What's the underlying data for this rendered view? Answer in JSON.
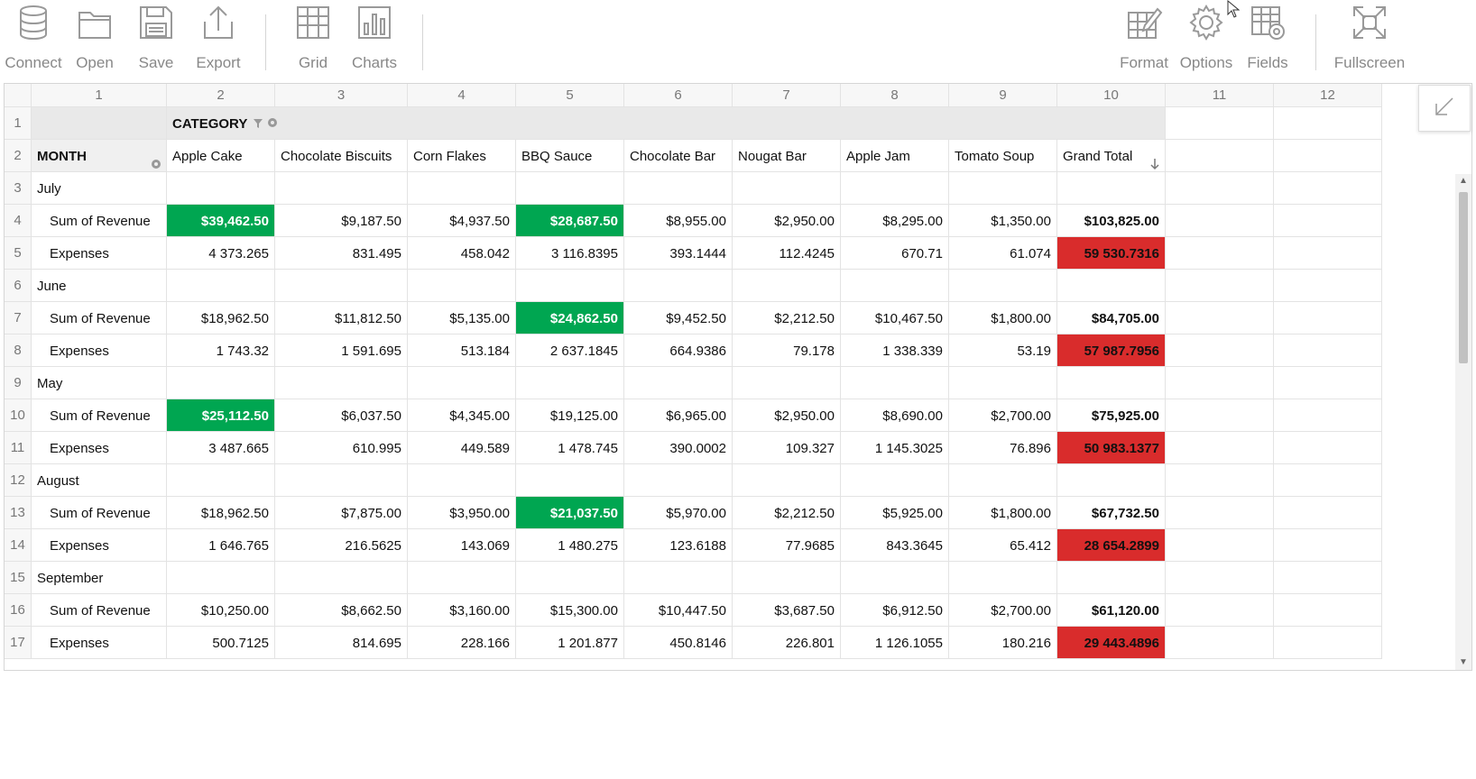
{
  "toolbar": {
    "connect": "Connect",
    "open": "Open",
    "save": "Save",
    "export": "Export",
    "grid": "Grid",
    "charts": "Charts",
    "format": "Format",
    "options": "Options",
    "fields": "Fields",
    "fullscreen": "Fullscreen"
  },
  "column_numbers": [
    "1",
    "2",
    "3",
    "4",
    "5",
    "6",
    "7",
    "8",
    "9",
    "10",
    "11",
    "12"
  ],
  "row_numbers": [
    "1",
    "2",
    "3",
    "4",
    "5",
    "6",
    "7",
    "8",
    "9",
    "10",
    "11",
    "12",
    "13",
    "14",
    "15",
    "16",
    "17"
  ],
  "pivot": {
    "category_label": "CATEGORY",
    "month_label": "MONTH",
    "columns": [
      "Apple Cake",
      "Chocolate Biscuits",
      "Corn Flakes",
      "BBQ Sauce",
      "Chocolate Bar",
      "Nougat Bar",
      "Apple Jam",
      "Tomato Soup",
      "Grand Total"
    ],
    "rows": [
      {
        "type": "group",
        "label": "July"
      },
      {
        "type": "data",
        "label": "Sum of Revenue",
        "values": [
          "$39,462.50",
          "$9,187.50",
          "$4,937.50",
          "$28,687.50",
          "$8,955.00",
          "$2,950.00",
          "$8,295.00",
          "$1,350.00",
          "$103,825.00"
        ],
        "highlight": [
          "green",
          "",
          "",
          "green",
          "",
          "",
          "",
          "",
          ""
        ]
      },
      {
        "type": "data",
        "label": "Expenses",
        "values": [
          "4 373.265",
          "831.495",
          "458.042",
          "3 116.8395",
          "393.1444",
          "112.4245",
          "670.71",
          "61.074",
          "59 530.7316"
        ],
        "highlight": [
          "",
          "",
          "",
          "",
          "",
          "",
          "",
          "",
          "red"
        ]
      },
      {
        "type": "group",
        "label": "June"
      },
      {
        "type": "data",
        "label": "Sum of Revenue",
        "values": [
          "$18,962.50",
          "$11,812.50",
          "$5,135.00",
          "$24,862.50",
          "$9,452.50",
          "$2,212.50",
          "$10,467.50",
          "$1,800.00",
          "$84,705.00"
        ],
        "highlight": [
          "",
          "",
          "",
          "green",
          "",
          "",
          "",
          "",
          ""
        ]
      },
      {
        "type": "data",
        "label": "Expenses",
        "values": [
          "1 743.32",
          "1 591.695",
          "513.184",
          "2 637.1845",
          "664.9386",
          "79.178",
          "1 338.339",
          "53.19",
          "57 987.7956"
        ],
        "highlight": [
          "",
          "",
          "",
          "",
          "",
          "",
          "",
          "",
          "red"
        ]
      },
      {
        "type": "group",
        "label": "May"
      },
      {
        "type": "data",
        "label": "Sum of Revenue",
        "values": [
          "$25,112.50",
          "$6,037.50",
          "$4,345.00",
          "$19,125.00",
          "$6,965.00",
          "$2,950.00",
          "$8,690.00",
          "$2,700.00",
          "$75,925.00"
        ],
        "highlight": [
          "green",
          "",
          "",
          "",
          "",
          "",
          "",
          "",
          ""
        ]
      },
      {
        "type": "data",
        "label": "Expenses",
        "values": [
          "3 487.665",
          "610.995",
          "449.589",
          "1 478.745",
          "390.0002",
          "109.327",
          "1 145.3025",
          "76.896",
          "50 983.1377"
        ],
        "highlight": [
          "",
          "",
          "",
          "",
          "",
          "",
          "",
          "",
          "red"
        ]
      },
      {
        "type": "group",
        "label": "August"
      },
      {
        "type": "data",
        "label": "Sum of Revenue",
        "values": [
          "$18,962.50",
          "$7,875.00",
          "$3,950.00",
          "$21,037.50",
          "$5,970.00",
          "$2,212.50",
          "$5,925.00",
          "$1,800.00",
          "$67,732.50"
        ],
        "highlight": [
          "",
          "",
          "",
          "green",
          "",
          "",
          "",
          "",
          ""
        ]
      },
      {
        "type": "data",
        "label": "Expenses",
        "values": [
          "1 646.765",
          "216.5625",
          "143.069",
          "1 480.275",
          "123.6188",
          "77.9685",
          "843.3645",
          "65.412",
          "28 654.2899"
        ],
        "highlight": [
          "",
          "",
          "",
          "",
          "",
          "",
          "",
          "",
          "red"
        ]
      },
      {
        "type": "group",
        "label": "September"
      },
      {
        "type": "data",
        "label": "Sum of Revenue",
        "values": [
          "$10,250.00",
          "$8,662.50",
          "$3,160.00",
          "$15,300.00",
          "$10,447.50",
          "$3,687.50",
          "$6,912.50",
          "$2,700.00",
          "$61,120.00"
        ],
        "highlight": [
          "",
          "",
          "",
          "",
          "",
          "",
          "",
          "",
          ""
        ]
      },
      {
        "type": "data",
        "label": "Expenses",
        "values": [
          "500.7125",
          "814.695",
          "228.166",
          "1 201.877",
          "450.8146",
          "226.801",
          "1 126.1055",
          "180.216",
          "29 443.4896"
        ],
        "highlight": [
          "",
          "",
          "",
          "",
          "",
          "",
          "",
          "",
          "red"
        ]
      }
    ]
  },
  "colors": {
    "green": "#00a651",
    "red": "#d92c2c",
    "header_bg": "#f7f7f7",
    "grid_line": "#e3e3e3"
  }
}
